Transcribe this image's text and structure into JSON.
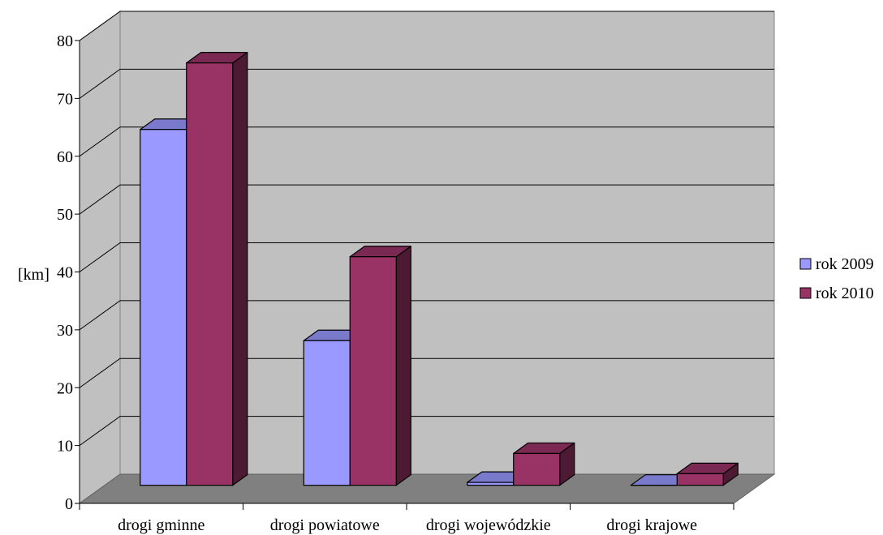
{
  "chart_data": {
    "type": "bar",
    "title": "",
    "xlabel": "",
    "ylabel": "[km]",
    "ylim": [
      0,
      80
    ],
    "ytick_step": 10,
    "yticks": [
      "0",
      "10",
      "20",
      "30",
      "40",
      "50",
      "60",
      "70",
      "80"
    ],
    "grid": true,
    "three_d": true,
    "legend_position": "right",
    "categories": [
      "drogi gminne",
      "drogi powiatowe",
      "drogi wojewódzkie",
      "drogi krajowe"
    ],
    "series": [
      {
        "name": "rok 2009",
        "color": "#9999FF",
        "values": [
          61.5,
          25,
          0.5,
          0
        ]
      },
      {
        "name": "rok 2010",
        "color": "#993366",
        "values": [
          73,
          39.5,
          5.5,
          2
        ]
      }
    ],
    "colors": {
      "wall": "#C0C0C0",
      "floor": "#808080",
      "side_2009": "#6666BB",
      "top_2009": "#7A7ACC",
      "side_2010": "#4D1A33",
      "top_2010": "#7A2952"
    }
  }
}
